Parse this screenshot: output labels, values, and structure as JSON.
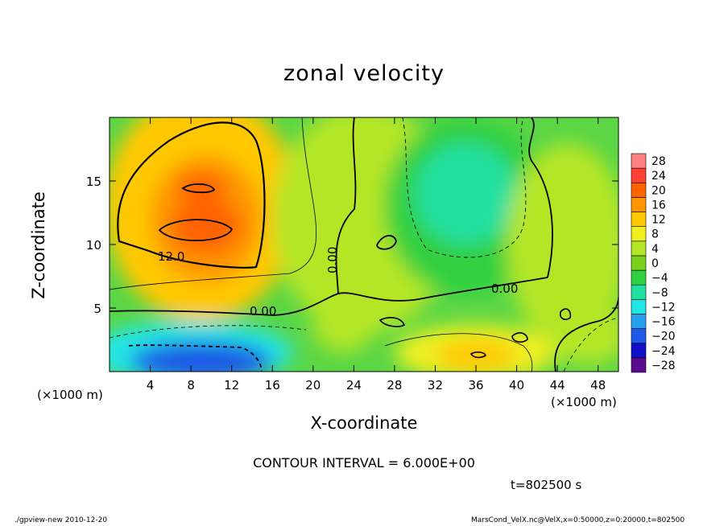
{
  "chart_data": {
    "type": "heatmap",
    "subtype": "filled contour",
    "title": "zonal velocity",
    "xlabel": "X-coordinate",
    "ylabel": "Z-coordinate",
    "x_unit": "(×1000 m)",
    "y_unit": "(×1000 m)",
    "xlim": [
      0,
      50
    ],
    "ylim": [
      0,
      20
    ],
    "x_ticks": [
      4,
      8,
      12,
      16,
      20,
      24,
      28,
      32,
      36,
      40,
      44,
      48
    ],
    "y_ticks": [
      5,
      10,
      15
    ],
    "colorbar": {
      "levels": [
        -28,
        -24,
        -20,
        -16,
        -12,
        -8,
        -4,
        0,
        4,
        8,
        12,
        16,
        20,
        24,
        28
      ],
      "min": -30,
      "max": 30,
      "placement": "right"
    },
    "contour_labels": [
      "12.0",
      "0.00",
      "0.00",
      "0.00"
    ],
    "grid": false,
    "features": [
      {
        "x": 9.5,
        "z": 11.2,
        "value": 20
      },
      {
        "x": 9,
        "z": 14.5,
        "value": 18
      },
      {
        "x": 35,
        "z": 14,
        "value": -9
      },
      {
        "x": 8,
        "z": 1,
        "value": -22
      },
      {
        "x": 36,
        "z": 1.4,
        "value": 12
      },
      {
        "x": 26,
        "z": 9.5,
        "value": 2
      }
    ]
  },
  "contour_interval": "CONTOUR INTERVAL = 6.000E+00",
  "time": "t=802500 s",
  "footer": {
    "left": "./gpview-new  2010-12-20",
    "right": "MarsCond_VelX.nc@VelX,x=0:50000,z=0:20000,t=802500"
  },
  "colors": {
    "scale": [
      "#5a0a8c",
      "#1010c8",
      "#1e5ae6",
      "#28a0f0",
      "#20e6e6",
      "#20e0a0",
      "#30d040",
      "#7ad21e",
      "#b4e628",
      "#f0f020",
      "#ffc800",
      "#ff9600",
      "#ff6400",
      "#ff4032",
      "#ff8080"
    ]
  }
}
